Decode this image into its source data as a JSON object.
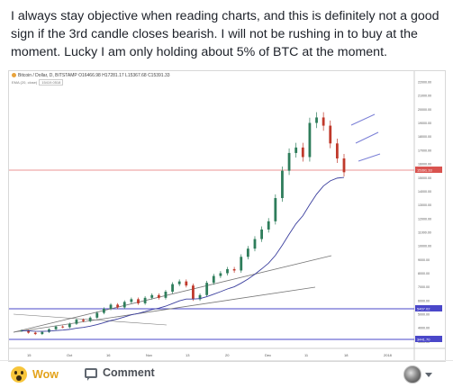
{
  "post": {
    "text": "I always stay objective when reading charts, and this is definitely not a good sign if the 3rd candle closes bearish. I will not be rushing in to buy at the moment. Lucky I am only holding about 5% of BTC at the moment."
  },
  "chart": {
    "header": "Bitcoin / Dollar, D, BITSTAMP",
    "ohlc": "O16466.98  H17281.17  L15367.68  C15391.33",
    "sub": "EMA (20, close)",
    "sub_value": "15419.0518",
    "price_labels": [
      "22000.00",
      "21000.00",
      "20000.00",
      "19000.00",
      "18000.00",
      "17000.00",
      "16000.00",
      "15000.00",
      "14000.00",
      "13000.00",
      "12000.00",
      "11000.00",
      "10000.00",
      "9000.00",
      "8000.00",
      "7000.00",
      "6000.00",
      "5000.00",
      "4000.00",
      "3000.00"
    ],
    "current_price_label": "15391.33",
    "lower_tag_1": "5467.02",
    "lower_tag_2": "3441.70",
    "time_labels": [
      "15",
      "Oct",
      "16",
      "Nov",
      "13",
      "20",
      "Dec",
      "11",
      "18",
      "2018"
    ]
  },
  "chart_data": {
    "type": "candlestick",
    "title": "Bitcoin / Dollar, D, BITSTAMP",
    "ylim": [
      2500,
      22000
    ],
    "series": [
      {
        "name": "price",
        "values": [
          3800,
          3650,
          3550,
          3700,
          3900,
          4100,
          4050,
          4300,
          4600,
          4500,
          4750,
          5100,
          5400,
          5700,
          5500,
          5900,
          6100,
          5800,
          6200,
          6400,
          6200,
          6650,
          7200,
          7400,
          7100,
          6100,
          6400,
          7300,
          7800,
          8000,
          8300,
          8200,
          9200,
          9800,
          10500,
          11200,
          11800,
          13500,
          15500,
          16800,
          17200,
          16500,
          19000,
          19400,
          18800,
          17500,
          16400,
          15391
        ]
      }
    ],
    "ema": "EMA (20, close)"
  },
  "actions": {
    "wow_label": "Wow",
    "comment_label": "Comment"
  }
}
